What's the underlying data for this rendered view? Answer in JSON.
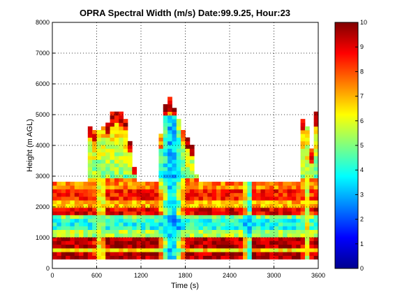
{
  "chart_data": {
    "type": "heatmap",
    "title": "OPRA Spectral Width (m/s)  Date:99.9.25, Hour:23",
    "xlabel": "Time (s)",
    "ylabel": "Height (m AGL)",
    "xlim": [
      0,
      3600
    ],
    "ylim": [
      0,
      8000
    ],
    "xticks": [
      0,
      600,
      1200,
      1800,
      2400,
      3000,
      3600
    ],
    "yticks": [
      0,
      1000,
      2000,
      3000,
      4000,
      5000,
      6000,
      7000,
      8000
    ],
    "grid": true,
    "colorbar": {
      "min": 0,
      "max": 10,
      "ticks": [
        0,
        1,
        2,
        3,
        4,
        5,
        6,
        7,
        8,
        9,
        10
      ],
      "colormap": "jet"
    },
    "gate_height_m": 120,
    "time_step_s": 60,
    "valid_height_top_m": [
      2800,
      2800,
      2800,
      2800,
      2800,
      2800,
      2800,
      2800,
      4600,
      4500,
      4500,
      4600,
      4700,
      5000,
      5100,
      5000,
      4800,
      4100,
      3300,
      2800,
      2800,
      2800,
      2800,
      2800,
      4300,
      5300,
      5500,
      5200,
      4800,
      4400,
      4200,
      4000,
      3000,
      2800,
      2800,
      2800,
      2800,
      2800,
      2800,
      2800,
      2800,
      2800,
      2800,
      2800,
      2800,
      2800,
      2800,
      2800,
      2800,
      2800,
      2800,
      2800,
      2800,
      2800,
      2800,
      2800,
      4800,
      4600,
      3800,
      5000,
      3600
    ],
    "band_values": [
      {
        "height_range": [
          300,
          550
        ],
        "value": 9.5
      },
      {
        "height_range": [
          550,
          700
        ],
        "value": 6.5
      },
      {
        "height_range": [
          700,
          1000
        ],
        "value": 9.5
      },
      {
        "height_range": [
          1000,
          1250
        ],
        "value": 5.5
      },
      {
        "height_range": [
          1250,
          1600
        ],
        "value": 4.0
      },
      {
        "height_range": [
          1600,
          1750
        ],
        "value": 5.0
      },
      {
        "height_range": [
          1750,
          2000
        ],
        "value": 9.0
      },
      {
        "height_range": [
          2000,
          2250
        ],
        "value": 7.0
      },
      {
        "height_range": [
          2250,
          2550
        ],
        "value": 8.5
      },
      {
        "height_range": [
          2550,
          3000
        ],
        "value": 7.5
      }
    ],
    "low_width_regions": [
      {
        "time_center_s": 1620,
        "width_s": 420,
        "value": 2.8
      },
      {
        "time_center_s": 2650,
        "width_s": 120,
        "value": 2.5
      },
      {
        "time_center_s": 650,
        "width_s": 200,
        "value": 5.5
      },
      {
        "time_center_s": 3450,
        "width_s": 150,
        "value": 6.0
      }
    ]
  }
}
